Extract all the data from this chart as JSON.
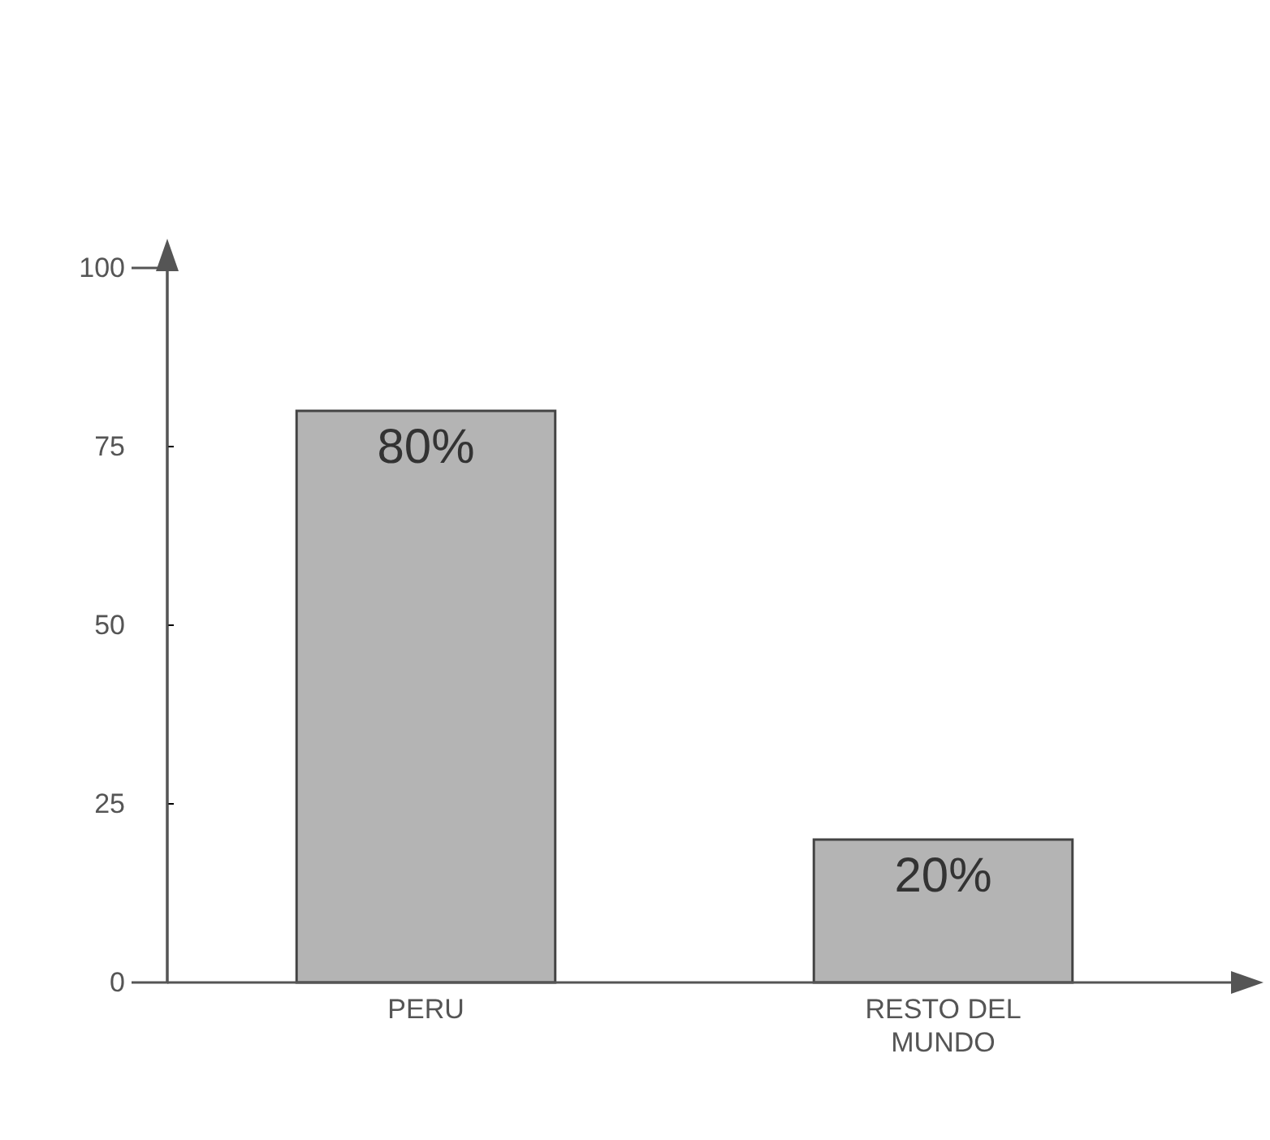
{
  "chart_data": {
    "type": "bar",
    "categories": [
      "PERU",
      "RESTO DEL MUNDO"
    ],
    "values": [
      80,
      20
    ],
    "value_labels": [
      "80%",
      "20%"
    ],
    "color": "#b4b4b4",
    "ylim": [
      0,
      100
    ],
    "yticks": [
      0,
      25,
      50,
      75,
      100
    ],
    "grid": false
  }
}
